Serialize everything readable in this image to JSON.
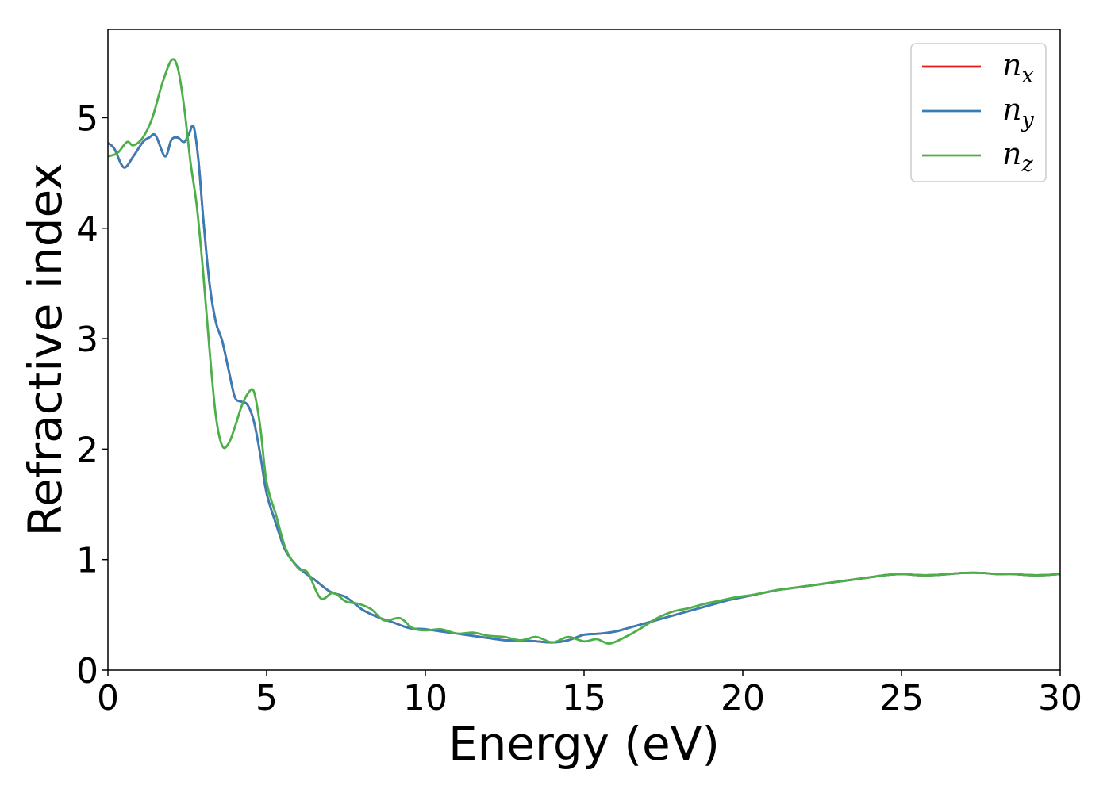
{
  "chart_data": {
    "type": "line",
    "title": "",
    "xlabel": "Energy (eV)",
    "ylabel": "Refractive index",
    "xlim": [
      0,
      30
    ],
    "ylim": [
      0,
      5.8
    ],
    "xticks": [
      0,
      5,
      10,
      15,
      20,
      25,
      30
    ],
    "yticks": [
      0,
      1,
      2,
      3,
      4,
      5
    ],
    "grid": false,
    "legend_position": "top-right",
    "series": [
      {
        "name": "n_x",
        "label_base": "n",
        "label_sub": "x",
        "color": "#e41a1c",
        "x": [
          0,
          0.2,
          0.5,
          0.8,
          1.1,
          1.3,
          1.5,
          1.8,
          2.0,
          2.2,
          2.4,
          2.55,
          2.7,
          2.85,
          3.0,
          3.2,
          3.4,
          3.6,
          3.8,
          4.0,
          4.2,
          4.4,
          4.6,
          4.8,
          5.0,
          5.3,
          5.6,
          6.0,
          6.5,
          7.0,
          7.5,
          8.0,
          8.5,
          9.0,
          9.5,
          10.0,
          10.5,
          11.0,
          11.5,
          12.0,
          12.5,
          13.0,
          13.5,
          14.0,
          14.5,
          15.0,
          15.5,
          16.0,
          16.5,
          17.0,
          17.5,
          18.0,
          18.5,
          19.0,
          19.5,
          20.0,
          20.5,
          21.0,
          21.5,
          22.0,
          22.5,
          23.0,
          23.5,
          24.0,
          24.5,
          25.0,
          25.5,
          26.0,
          26.5,
          27.0,
          27.5,
          28.0,
          28.5,
          29.0,
          29.5,
          30.0
        ],
        "y": [
          4.77,
          4.72,
          4.55,
          4.65,
          4.78,
          4.82,
          4.84,
          4.65,
          4.8,
          4.82,
          4.78,
          4.85,
          4.92,
          4.62,
          4.1,
          3.5,
          3.15,
          2.98,
          2.72,
          2.47,
          2.43,
          2.4,
          2.25,
          1.95,
          1.6,
          1.32,
          1.08,
          0.93,
          0.82,
          0.71,
          0.66,
          0.55,
          0.48,
          0.43,
          0.38,
          0.37,
          0.35,
          0.33,
          0.31,
          0.29,
          0.27,
          0.27,
          0.26,
          0.25,
          0.27,
          0.32,
          0.33,
          0.35,
          0.39,
          0.43,
          0.47,
          0.51,
          0.55,
          0.59,
          0.63,
          0.66,
          0.69,
          0.72,
          0.74,
          0.76,
          0.78,
          0.8,
          0.82,
          0.84,
          0.86,
          0.87,
          0.86,
          0.86,
          0.87,
          0.88,
          0.88,
          0.87,
          0.87,
          0.86,
          0.86,
          0.87
        ]
      },
      {
        "name": "n_y",
        "label_base": "n",
        "label_sub": "y",
        "color": "#377eb8",
        "x": [
          0,
          0.2,
          0.5,
          0.8,
          1.1,
          1.3,
          1.5,
          1.8,
          2.0,
          2.2,
          2.4,
          2.55,
          2.7,
          2.85,
          3.0,
          3.2,
          3.4,
          3.6,
          3.8,
          4.0,
          4.2,
          4.4,
          4.6,
          4.8,
          5.0,
          5.3,
          5.6,
          6.0,
          6.5,
          7.0,
          7.5,
          8.0,
          8.5,
          9.0,
          9.5,
          10.0,
          10.5,
          11.0,
          11.5,
          12.0,
          12.5,
          13.0,
          13.5,
          14.0,
          14.5,
          15.0,
          15.5,
          16.0,
          16.5,
          17.0,
          17.5,
          18.0,
          18.5,
          19.0,
          19.5,
          20.0,
          20.5,
          21.0,
          21.5,
          22.0,
          22.5,
          23.0,
          23.5,
          24.0,
          24.5,
          25.0,
          25.5,
          26.0,
          26.5,
          27.0,
          27.5,
          28.0,
          28.5,
          29.0,
          29.5,
          30.0
        ],
        "y": [
          4.77,
          4.72,
          4.55,
          4.65,
          4.78,
          4.82,
          4.84,
          4.65,
          4.8,
          4.82,
          4.78,
          4.85,
          4.92,
          4.62,
          4.1,
          3.5,
          3.15,
          2.98,
          2.72,
          2.47,
          2.43,
          2.4,
          2.25,
          1.95,
          1.6,
          1.32,
          1.08,
          0.93,
          0.82,
          0.71,
          0.66,
          0.55,
          0.48,
          0.43,
          0.38,
          0.37,
          0.35,
          0.33,
          0.31,
          0.29,
          0.27,
          0.27,
          0.26,
          0.25,
          0.27,
          0.32,
          0.33,
          0.35,
          0.39,
          0.43,
          0.47,
          0.51,
          0.55,
          0.59,
          0.63,
          0.66,
          0.69,
          0.72,
          0.74,
          0.76,
          0.78,
          0.8,
          0.82,
          0.84,
          0.86,
          0.87,
          0.86,
          0.86,
          0.87,
          0.88,
          0.88,
          0.87,
          0.87,
          0.86,
          0.86,
          0.87
        ]
      },
      {
        "name": "n_z",
        "label_base": "n",
        "label_sub": "z",
        "color": "#4daf4a",
        "x": [
          0,
          0.3,
          0.6,
          0.8,
          1.1,
          1.4,
          1.7,
          2.0,
          2.2,
          2.4,
          2.6,
          2.8,
          3.0,
          3.2,
          3.4,
          3.6,
          3.8,
          4.0,
          4.2,
          4.4,
          4.6,
          4.8,
          5.0,
          5.3,
          5.6,
          6.0,
          6.3,
          6.7,
          7.1,
          7.5,
          7.9,
          8.3,
          8.7,
          9.2,
          9.6,
          10.0,
          10.5,
          11.0,
          11.5,
          12.0,
          12.5,
          13.0,
          13.5,
          14.0,
          14.5,
          15.0,
          15.4,
          15.8,
          16.3,
          16.8,
          17.3,
          17.8,
          18.3,
          18.8,
          19.3,
          19.8,
          20.3,
          21.0,
          21.5,
          22.0,
          22.5,
          23.0,
          23.5,
          24.0,
          24.5,
          25.0,
          25.5,
          26.0,
          26.5,
          27.0,
          27.5,
          28.0,
          28.5,
          29.0,
          29.5,
          30.0
        ],
        "y": [
          4.65,
          4.68,
          4.78,
          4.75,
          4.82,
          5.0,
          5.3,
          5.52,
          5.45,
          5.1,
          4.6,
          4.2,
          3.6,
          2.9,
          2.3,
          2.03,
          2.05,
          2.2,
          2.38,
          2.5,
          2.52,
          2.2,
          1.7,
          1.4,
          1.1,
          0.92,
          0.88,
          0.65,
          0.7,
          0.62,
          0.6,
          0.55,
          0.45,
          0.47,
          0.38,
          0.36,
          0.37,
          0.33,
          0.34,
          0.31,
          0.3,
          0.27,
          0.3,
          0.25,
          0.3,
          0.26,
          0.28,
          0.24,
          0.3,
          0.38,
          0.47,
          0.53,
          0.56,
          0.6,
          0.63,
          0.66,
          0.68,
          0.72,
          0.74,
          0.76,
          0.78,
          0.8,
          0.82,
          0.84,
          0.86,
          0.87,
          0.86,
          0.86,
          0.87,
          0.88,
          0.88,
          0.87,
          0.87,
          0.86,
          0.86,
          0.87
        ]
      }
    ]
  }
}
